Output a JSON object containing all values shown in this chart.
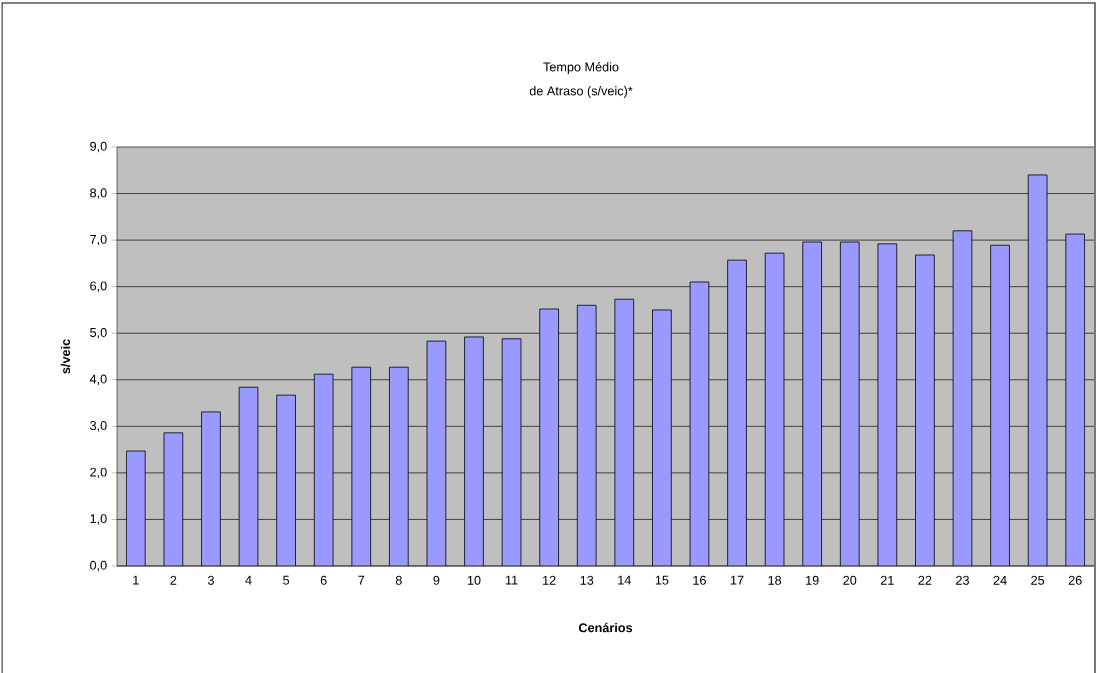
{
  "chart_data": {
    "type": "bar",
    "title": "Tempo Médio",
    "subtitle": "de Atraso (s/veic)*",
    "xlabel": "Cenários",
    "ylabel": "s/veic",
    "categories": [
      "1",
      "2",
      "3",
      "4",
      "5",
      "6",
      "7",
      "8",
      "9",
      "10",
      "11",
      "12",
      "13",
      "14",
      "15",
      "16",
      "17",
      "18",
      "19",
      "20",
      "21",
      "22",
      "23",
      "24",
      "25",
      "26"
    ],
    "values": [
      2.47,
      2.86,
      3.31,
      3.84,
      3.67,
      4.12,
      4.27,
      4.27,
      4.83,
      4.92,
      4.88,
      5.52,
      5.6,
      5.73,
      5.5,
      6.1,
      6.57,
      6.72,
      6.96,
      6.96,
      6.92,
      6.68,
      7.2,
      6.89,
      8.4,
      7.13
    ],
    "color": "#9999ff",
    "ylim": [
      0,
      9
    ],
    "yticks": [
      {
        "value": 0,
        "label": "0,0"
      },
      {
        "value": 1,
        "label": "1,0"
      },
      {
        "value": 2,
        "label": "2,0"
      },
      {
        "value": 3,
        "label": "3,0"
      },
      {
        "value": 4,
        "label": "4,0"
      },
      {
        "value": 5,
        "label": "5,0"
      },
      {
        "value": 6,
        "label": "6,0"
      },
      {
        "value": 7,
        "label": "7,0"
      },
      {
        "value": 8,
        "label": "8,0"
      },
      {
        "value": 9,
        "label": "9,0"
      }
    ],
    "grid": "y"
  }
}
